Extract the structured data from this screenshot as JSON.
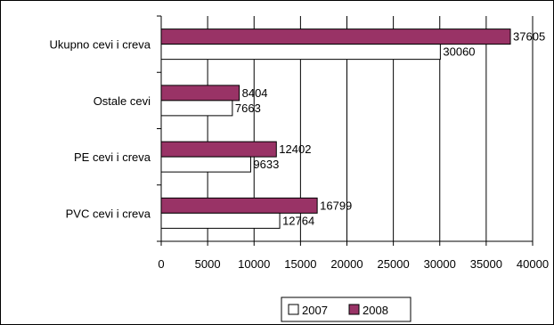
{
  "chart_data": {
    "type": "bar",
    "orientation": "horizontal",
    "categories": [
      "Ukupno cevi i creva",
      "Ostale cevi",
      "PE cevi i creva",
      "PVC cevi i creva"
    ],
    "series": [
      {
        "name": "2007",
        "values": [
          30060,
          7663,
          9633,
          12764
        ],
        "color": "#ffffff"
      },
      {
        "name": "2008",
        "values": [
          37605,
          8404,
          12402,
          16799
        ],
        "color": "#993366"
      }
    ],
    "xlim": [
      0,
      40000
    ],
    "xticks": [
      0,
      5000,
      10000,
      15000,
      20000,
      25000,
      30000,
      35000,
      40000
    ],
    "xgrid": true,
    "legend": "bottom",
    "data_labels": true
  }
}
